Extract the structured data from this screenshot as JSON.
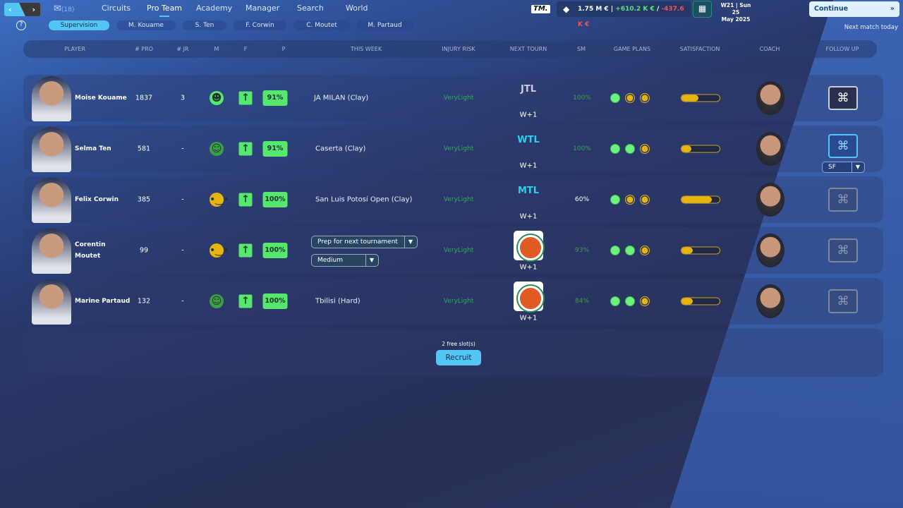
{
  "topbar": {
    "mail_count": "(18)",
    "menu": [
      "Circuits",
      "Pro Team",
      "Academy",
      "Manager",
      "Search",
      "World"
    ],
    "active": "Pro Team",
    "brand": "TM.",
    "balance": "1.75 M €",
    "separator": "|",
    "income": "+610.2 K €",
    "slash": "/",
    "expense": "-437.6 K €",
    "date_line1": "W21 | Sun 25",
    "date_line2": "May 2025",
    "continue": "Continue",
    "next_match": "Next match today"
  },
  "subtabs": [
    "Supervision",
    "M. Kouame",
    "S. Ten",
    "F. Corwin",
    "C. Moutet",
    "M. Partaud"
  ],
  "columns": [
    "PLAYER",
    "# PRO",
    "# JR",
    "M",
    "F",
    "P",
    "THIS WEEK",
    "INJURY RISK",
    "NEXT TOURN",
    "SM",
    "GAME PLANS",
    "SATISFACTION",
    "COACH",
    "FOLLOW UP"
  ],
  "players": [
    {
      "name": "Moise Kouame",
      "pro": "1837",
      "jr": "3",
      "mood": "happy",
      "form": "up",
      "p": "91%",
      "week": "JA MILAN (Clay)",
      "injury": "VeryLight",
      "tourn_logo": "JTL",
      "tourn_when": "W+1",
      "sm": "100%",
      "plans": [
        "green",
        "yellow",
        "yellow"
      ],
      "satisfaction": 0.45,
      "follow": "active"
    },
    {
      "name": "Selma Ten",
      "pro": "581",
      "jr": "-",
      "mood": "smile",
      "form": "up",
      "p": "91%",
      "week": "Caserta (Clay)",
      "injury": "VeryLight",
      "tourn_logo": "WTL",
      "tourn_when": "W+1",
      "sm": "100%",
      "plans": [
        "green",
        "green",
        "yellow"
      ],
      "satisfaction": 0.25,
      "follow": "selected",
      "follow_value": "SF"
    },
    {
      "name": "Felix Corwin",
      "pro": "385",
      "jr": "-",
      "mood": "neutral",
      "form": "up",
      "p": "100%",
      "week": "San Luis Potosí Open (Clay)",
      "injury": "VeryLight",
      "tourn_logo": "MTL",
      "tourn_when": "W+1",
      "sm": "60%",
      "plans": [
        "green",
        "yellow",
        "yellow"
      ],
      "satisfaction": 0.8,
      "follow": "inactive"
    },
    {
      "name": "Corentin Moutet",
      "pro": "99",
      "jr": "-",
      "mood": "neutral",
      "form": "up",
      "p": "100%",
      "week_select": "Prep for next tournament",
      "week_intensity": "Medium",
      "injury": "VeryLight",
      "tourn_logo": "badge",
      "tourn_when": "W+1",
      "sm": "93%",
      "plans": [
        "green",
        "green",
        "yellow"
      ],
      "satisfaction": 0.3,
      "follow": "inactive"
    },
    {
      "name": "Marine Partaud",
      "pro": "132",
      "jr": "-",
      "mood": "smile",
      "form": "up",
      "p": "100%",
      "week": "Tbilisi (Hard)",
      "injury": "VeryLight",
      "tourn_logo": "badge",
      "tourn_when": "W+1",
      "sm": "84%",
      "plans": [
        "green",
        "green",
        "yellow"
      ],
      "satisfaction": 0.3,
      "follow": "inactive"
    }
  ],
  "recruit": {
    "slots": "2 free slot(s)",
    "button": "Recruit"
  },
  "colors": {
    "accent": "#54c6f5",
    "green": "#56e86c",
    "yellow": "#e6b40c",
    "income": "#5ee07a",
    "expense": "#f0505a"
  }
}
